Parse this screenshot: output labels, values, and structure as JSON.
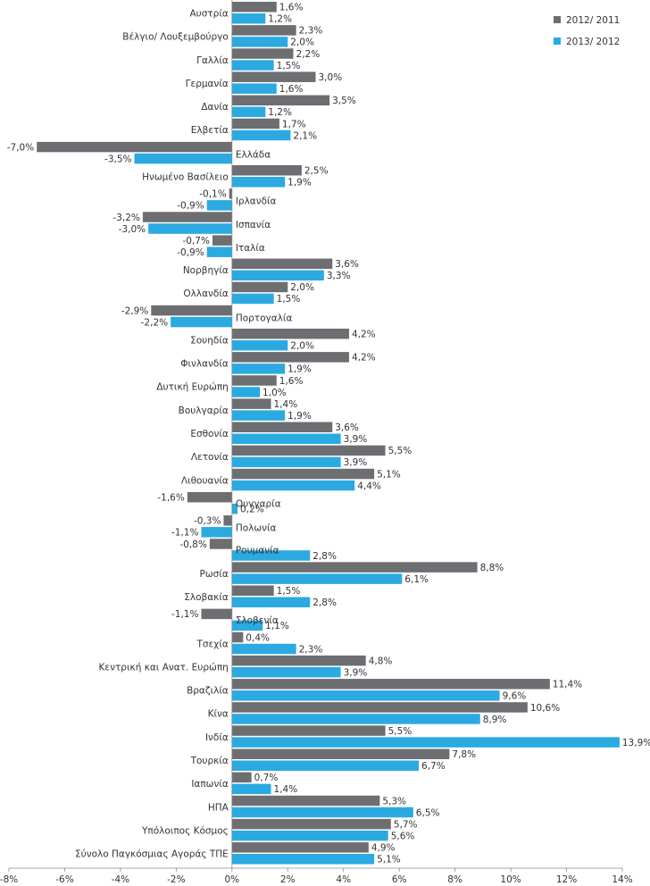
{
  "chart_data": {
    "type": "bar",
    "orientation": "horizontal",
    "xlim": [
      -8,
      14
    ],
    "x_ticks": [
      -8,
      -6,
      -4,
      -2,
      0,
      2,
      4,
      6,
      8,
      10,
      12,
      14
    ],
    "x_tick_labels": [
      "-8%",
      "-6%",
      "-4%",
      "-2%",
      "0%",
      "2%",
      "4%",
      "6%",
      "8%",
      "10%",
      "12%",
      "14%"
    ],
    "grid": false,
    "legend_position": "top-right",
    "colors": {
      "2012/ 2011": "#6d6e71",
      "2013/ 2012": "#2aaae1"
    },
    "categories": [
      "Αυστρία",
      "Βέλγιο/ Λουξεμβούργο",
      "Γαλλία",
      "Γερμανία",
      "Δανία",
      "Ελβετία",
      "Ελλάδα",
      "Ηνωμένο Βασίλειο",
      "Ιρλανδία",
      "Ισπανία",
      "Ιταλία",
      "Νορβηγία",
      "Ολλανδία",
      "Πορτογαλία",
      "Σουηδία",
      "Φινλανδία",
      "Δυτική Ευρώπη",
      "Βουλγαρία",
      "Εσθονία",
      "Λετονία",
      "Λιθουανία",
      "Ουγγαρία",
      "Πολωνία",
      "Ρουμανία",
      "Ρωσία",
      "Σλοβακία",
      "Σλοβενία",
      "Τσεχία",
      "Κεντρική και Ανατ. Ευρώπη",
      "Βραζιλία",
      "Κίνα",
      "Ινδία",
      "Τουρκία",
      "Ιαπωνία",
      "ΗΠΑ",
      "Υπόλοιπος Κόσμος",
      "Σύνολο Παγκόσμιας Αγοράς ΤΠΕ"
    ],
    "series": [
      {
        "name": "2012/ 2011",
        "values": [
          1.6,
          2.3,
          2.2,
          3.0,
          3.5,
          1.7,
          -7.0,
          2.5,
          -0.1,
          -3.2,
          -0.7,
          3.6,
          2.0,
          -2.9,
          4.2,
          4.2,
          1.6,
          1.4,
          3.6,
          5.5,
          5.1,
          -1.6,
          -0.3,
          -0.8,
          8.8,
          1.5,
          -1.1,
          0.4,
          4.8,
          11.4,
          10.6,
          5.5,
          7.8,
          0.7,
          5.3,
          5.7,
          4.9
        ],
        "labels": [
          "1,6%",
          "2,3%",
          "2,2%",
          "3,0%",
          "3,5%",
          "1,7%",
          "-7,0%",
          "2,5%",
          "-0,1%",
          "-3,2%",
          "-0,7%",
          "3,6%",
          "2,0%",
          "-2,9%",
          "4,2%",
          "4,2%",
          "1,6%",
          "1,4%",
          "3,6%",
          "5,5%",
          "5,1%",
          "-1,6%",
          "-0,3%",
          "-0,8%",
          "8,8%",
          "1,5%",
          "-1,1%",
          "0,4%",
          "4,8%",
          "11,4%",
          "10,6%",
          "5,5%",
          "7,8%",
          "0,7%",
          "5,3%",
          "5,7%",
          "4,9%"
        ]
      },
      {
        "name": "2013/ 2012",
        "values": [
          1.2,
          2.0,
          1.5,
          1.6,
          1.2,
          2.1,
          -3.5,
          1.9,
          -0.9,
          -3.0,
          -0.9,
          3.3,
          1.5,
          -2.2,
          2.0,
          1.9,
          1.0,
          1.9,
          3.9,
          3.9,
          4.4,
          0.2,
          -1.1,
          2.8,
          6.1,
          2.8,
          1.1,
          2.3,
          3.9,
          9.6,
          8.9,
          13.9,
          6.7,
          1.4,
          6.5,
          5.6,
          5.1
        ],
        "labels": [
          "1,2%",
          "2,0%",
          "1,5%",
          "1,6%",
          "1,2%",
          "2,1%",
          "-3,5%",
          "1,9%",
          "-0,9%",
          "-3,0%",
          "-0,9%",
          "3,3%",
          "1,5%",
          "-2,2%",
          "2,0%",
          "1,9%",
          "1,0%",
          "1,9%",
          "3,9%",
          "3,9%",
          "4,4%",
          "0,2%",
          "-1,1%",
          "2,8%",
          "6,1%",
          "2,8%",
          "1,1%",
          "2,3%",
          "3,9%",
          "9,6%",
          "8,9%",
          "13,9%",
          "6,7%",
          "1,4%",
          "6,5%",
          "5,6%",
          "5,1%"
        ]
      }
    ]
  }
}
